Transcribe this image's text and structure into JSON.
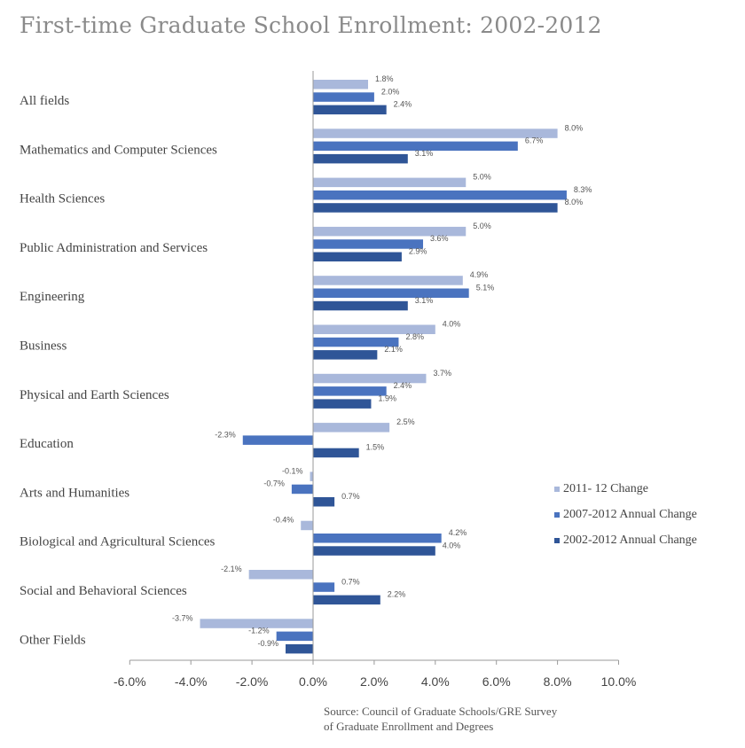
{
  "chart_data": {
    "type": "bar",
    "orientation": "horizontal",
    "title": "First-time Graduate School Enrollment: 2002-2012",
    "categories": [
      "All fields",
      "Mathematics and Computer Sciences",
      "Health Sciences",
      "Public Administration and Services",
      "Engineering",
      "Business",
      "Physical and Earth Sciences",
      "Education",
      "Arts and Humanities",
      "Biological and Agricultural Sciences",
      "Social and Behavioral Sciences",
      "Other Fields"
    ],
    "series": [
      {
        "name": "2011- 12 Change",
        "color": "#a9b8db",
        "values": [
          1.8,
          8.0,
          5.0,
          5.0,
          4.9,
          4.0,
          3.7,
          2.5,
          -0.1,
          -0.4,
          -2.1,
          -3.7
        ],
        "labels": [
          "1.8%",
          "8.0%",
          "5.0%",
          "5.0%",
          "4.9%",
          "4.0%",
          "3.7%",
          "2.5%",
          "-0.1%",
          "-0.4%",
          "-2.1%",
          "-3.7%"
        ]
      },
      {
        "name": "2007-2012 Annual Change",
        "color": "#4a73bf",
        "values": [
          2.0,
          6.7,
          8.3,
          3.6,
          5.1,
          2.8,
          2.4,
          -2.3,
          -0.7,
          4.2,
          0.7,
          -1.2
        ],
        "labels": [
          "2.0%",
          "6.7%",
          "8.3%",
          "3.6%",
          "5.1%",
          "2.8%",
          "2.4%",
          "-2.3%",
          "-0.7%",
          "4.2%",
          "0.7%",
          "-1.2%"
        ]
      },
      {
        "name": "2002-2012 Annual Change",
        "color": "#2f5597",
        "values": [
          2.4,
          3.1,
          8.0,
          2.9,
          3.1,
          2.1,
          1.9,
          1.5,
          0.7,
          4.0,
          2.2,
          -0.9
        ],
        "labels": [
          "2.4%",
          "3.1%",
          "8.0%",
          "2.9%",
          "3.1%",
          "2.1%",
          "1.9%",
          "1.5%",
          "0.7%",
          "4.0%",
          "2.2%",
          "-0.9%"
        ]
      }
    ],
    "xlim": [
      -6.0,
      10.0
    ],
    "xticks": [
      -6.0,
      -4.0,
      -2.0,
      0.0,
      2.0,
      4.0,
      6.0,
      8.0,
      10.0
    ],
    "xtick_labels": [
      "-6.0%",
      "-4.0%",
      "-2.0%",
      "0.0%",
      "2.0%",
      "4.0%",
      "6.0%",
      "8.0%",
      "10.0%"
    ],
    "xlabel": "",
    "ylabel": "",
    "grid": false,
    "legend_position": "right"
  },
  "source": {
    "line1": "Source: Council of Graduate Schools/GRE Survey",
    "line2": "of Graduate Enrollment and Degrees"
  }
}
